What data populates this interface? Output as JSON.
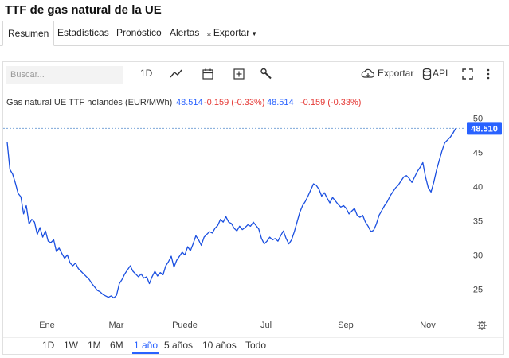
{
  "page": {
    "title": "TTF de gas natural de la UE"
  },
  "tabs": [
    {
      "label": "Resumen"
    },
    {
      "label": "Estadísticas"
    },
    {
      "label": "Pronóstico"
    },
    {
      "label": "Alertas"
    },
    {
      "label": "Exportar"
    }
  ],
  "toolbar": {
    "search_placeholder": "Buscar...",
    "interval": "1D",
    "export_label": "Exportar",
    "api_label": "API"
  },
  "legend": {
    "series_name": "Gas natural UE TTF holandés (EUR/MWh)",
    "value_blue": "48.514",
    "change_red": "-0.159 (-0.33%)",
    "value_blue_2": "48.514",
    "change_red_2": "-0.159 (-0.33%)"
  },
  "last_price_label": "48.510",
  "colors": {
    "line": "#1a4fe0",
    "accent": "#2962ff",
    "negative": "#e53935",
    "price_tag": "#2962ff"
  },
  "ranges": [
    {
      "label": "1D"
    },
    {
      "label": "1W"
    },
    {
      "label": "1M"
    },
    {
      "label": "6M"
    },
    {
      "label": "1 año"
    },
    {
      "label": "5 años"
    },
    {
      "label": "10 años"
    },
    {
      "label": "Todo"
    }
  ],
  "active_range": "1 año",
  "chart_data": {
    "type": "line",
    "y_ticks": [
      25,
      30,
      35,
      40,
      45,
      50
    ],
    "x_tick_labels": [
      "Ene",
      "Mar",
      "Puede",
      "Jul",
      "Sep",
      "Nov"
    ],
    "ylim": [
      20.5,
      51
    ],
    "grid": false,
    "last_value": 48.51,
    "series": [
      {
        "values": [
          46.5,
          42.5,
          41.8,
          40.5,
          39,
          38.5,
          36,
          37.2,
          34.5,
          35.2,
          34.8,
          33,
          34,
          32.6,
          33.5,
          32,
          31.8,
          32.2,
          30.5,
          31,
          30.2,
          29.5,
          30,
          28.8,
          28.4,
          28.8,
          28,
          27.6,
          27.2,
          26.8,
          26.4,
          25.8,
          25.3,
          24.8,
          24.6,
          24.2,
          24,
          23.8,
          24,
          23.7,
          24.1,
          25.8,
          26.4,
          27.2,
          27.8,
          28.4,
          27.6,
          27.2,
          26.8,
          27.2,
          26.6,
          26.8,
          25.8,
          26.8,
          27.6,
          26.9,
          27.4,
          27.1,
          28.4,
          29,
          29.8,
          28.2,
          29.2,
          29.8,
          30.4,
          30,
          31.2,
          30.6,
          31.6,
          32.8,
          32.2,
          31.4,
          32.6,
          33,
          33.4,
          33.2,
          33.9,
          34.3,
          35.2,
          34.8,
          35.6,
          34.8,
          34.6,
          33.9,
          33.5,
          34.2,
          33.7,
          34,
          34.4,
          34.2,
          34.8,
          34.3,
          33.8,
          32.4,
          31.6,
          32,
          32.6,
          32.2,
          32.4,
          32,
          32.8,
          33.5,
          32.4,
          31.6,
          32.2,
          33.4,
          34.8,
          36.2,
          37.2,
          37.8,
          38.6,
          39.5,
          40.4,
          40.2,
          39.6,
          38.6,
          39.1,
          38.3,
          37.6,
          38.4,
          37.9,
          37.4,
          37,
          37.2,
          36.8,
          36,
          36.4,
          36.8,
          35.8,
          35.5,
          35.8,
          34.8,
          34.2,
          33.4,
          33.6,
          34.5,
          35.8,
          36.5,
          37.2,
          37.8,
          38.6,
          39.2,
          39.8,
          40.2,
          40.8,
          41.4,
          41.6,
          41.2,
          40.6,
          41.4,
          42.2,
          42.8,
          43.5,
          41.4,
          39.8,
          39.2,
          40.6,
          42.4,
          43.8,
          45.2,
          46.4,
          46.8,
          47.2,
          47.8,
          48.51
        ]
      }
    ]
  }
}
